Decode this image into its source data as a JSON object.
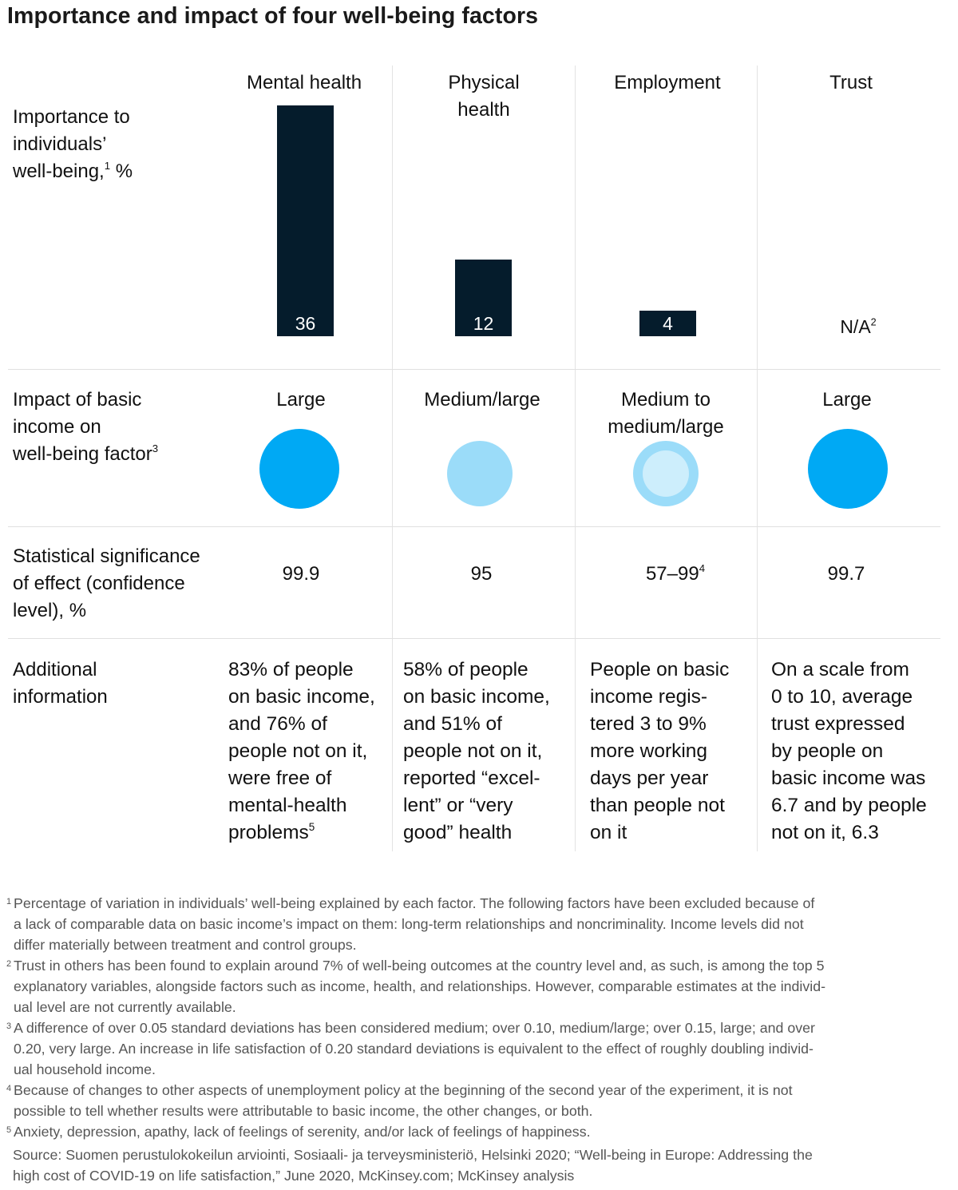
{
  "title": "Importance and impact of four well-being factors",
  "row_labels": {
    "importance": [
      "Importance to",
      "individuals’",
      "well-being,"
    ],
    "importance_sup": "1",
    "importance_unit": " %",
    "impact": [
      "Impact of basic",
      "income on",
      "well-being factor"
    ],
    "impact_sup": "3",
    "significance": [
      "Statistical significance",
      "of effect (confidence",
      "level), %"
    ],
    "additional": [
      "Additional",
      "information"
    ]
  },
  "columns": [
    {
      "header": [
        "Mental health"
      ],
      "importance_label": "36",
      "impact_label": [
        "Large"
      ],
      "significance": "99.9",
      "significance_sup": "",
      "info": [
        "83% of people",
        "on basic income,",
        "and 76% of",
        "people not on it,",
        "were free of",
        "mental-health",
        "problems"
      ],
      "info_sup": "5"
    },
    {
      "header": [
        "Physical",
        "health"
      ],
      "importance_label": "12",
      "impact_label": [
        "Medium/large"
      ],
      "significance": "95",
      "significance_sup": "",
      "info": [
        "58% of people",
        "on basic income,",
        "and 51% of",
        "people not on it,",
        "reported “excel-",
        "lent” or “very",
        "good” health"
      ],
      "info_sup": ""
    },
    {
      "header": [
        "Employment"
      ],
      "importance_label": "4",
      "impact_label": [
        "Medium to",
        "medium/large"
      ],
      "significance": "57–99",
      "significance_sup": "4",
      "info": [
        "People on basic",
        "income regis-",
        "tered 3 to 9%",
        "more working",
        "days per year",
        "than people not",
        "on it"
      ],
      "info_sup": ""
    },
    {
      "header": [
        "Trust"
      ],
      "importance_label": "N/A",
      "importance_sup": "2",
      "impact_label": [
        "Large"
      ],
      "significance": "99.7",
      "significance_sup": "",
      "info": [
        "On a scale from",
        "0 to 10, average",
        "trust expressed",
        "by people on",
        "basic income was",
        "6.7 and by people",
        "not on it, 6.3"
      ],
      "info_sup": ""
    }
  ],
  "colors": {
    "bar": "#051c2c",
    "large": "#00a9f4",
    "medium_large": "#9bdcf9",
    "medium_inner": "#cdeefc",
    "gridline": "#e0e0e0"
  },
  "chart_data": {
    "type": "bar",
    "title": "Importance and impact of four well-being factors",
    "categories": [
      "Mental health",
      "Physical health",
      "Employment",
      "Trust"
    ],
    "values": [
      36,
      12,
      4,
      null
    ],
    "ylabel": "Importance to individuals’ well-being, %",
    "ylim": [
      0,
      36
    ],
    "impact": [
      "Large",
      "Medium/large",
      "Medium to medium/large",
      "Large"
    ],
    "significance": [
      "99.9",
      "95",
      "57–99",
      "99.7"
    ]
  },
  "footnotes": [
    {
      "num": "1",
      "lines": [
        "Percentage of variation in individuals’ well-being explained by each factor. The following factors have been excluded because of",
        "a lack of comparable data on basic income’s impact on them: long-term relationships and noncriminality. Income levels did not",
        "differ materially between treatment and control groups."
      ]
    },
    {
      "num": "2",
      "lines": [
        "Trust in others has been found to explain around 7% of well-being outcomes at the country level and, as such, is among the top 5",
        "explanatory variables, alongside factors such as income, health, and relationships. However, comparable estimates at the individ-",
        "ual level are not currently available."
      ]
    },
    {
      "num": "3",
      "lines": [
        "A difference of over 0.05 standard deviations has been considered medium; over 0.10, medium/large; over 0.15, large; and over",
        "0.20, very large. An increase in life satisfaction of 0.20 standard deviations is equivalent to the effect of roughly doubling individ-",
        "ual household income."
      ]
    },
    {
      "num": "4",
      "lines": [
        "Because of changes to other aspects of unemployment policy at the beginning of the second year of the experiment, it is not",
        "possible to tell whether results were attributable to basic income, the other changes, or both."
      ]
    },
    {
      "num": "5",
      "lines": [
        "Anxiety, depression, apathy, lack of feelings of serenity, and/or lack of feelings of happiness."
      ]
    }
  ],
  "source": [
    "Source: Suomen perustulokokeilun arviointi, Sosiaali- ja terveysministeriö, Helsinki 2020; “Well-being in Europe: Addressing the",
    "high cost of COVID-19 on life satisfaction,” June 2020, McKinsey.com; McKinsey analysis"
  ]
}
